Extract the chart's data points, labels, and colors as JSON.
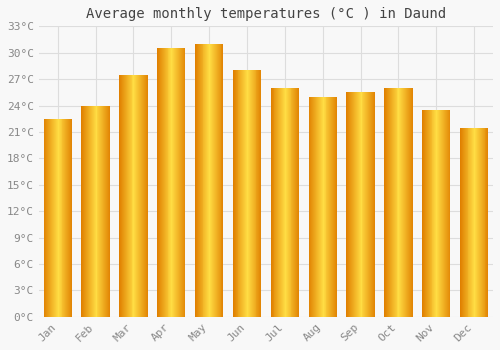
{
  "title": "Average monthly temperatures (°C ) in Daund",
  "months": [
    "Jan",
    "Feb",
    "Mar",
    "Apr",
    "May",
    "Jun",
    "Jul",
    "Aug",
    "Sep",
    "Oct",
    "Nov",
    "Dec"
  ],
  "values": [
    22.5,
    24.0,
    27.5,
    30.5,
    31.0,
    28.0,
    26.0,
    25.0,
    25.5,
    26.0,
    23.5,
    21.5
  ],
  "bar_color_light": "#FFDD88",
  "bar_color_main": "#FFB020",
  "bar_color_dark": "#E08000",
  "background_color": "#F8F8F8",
  "grid_color": "#DDDDDD",
  "text_color": "#888888",
  "title_color": "#444444",
  "ylim": [
    0,
    33
  ],
  "yticks": [
    0,
    3,
    6,
    9,
    12,
    15,
    18,
    21,
    24,
    27,
    30,
    33
  ],
  "title_fontsize": 10,
  "tick_fontsize": 8
}
